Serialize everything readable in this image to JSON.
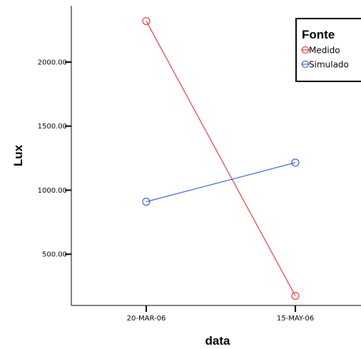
{
  "chart_data": {
    "type": "line",
    "xlabel": "data",
    "ylabel": "Lux",
    "categories": [
      "20-MAR-06",
      "15-MAY-06"
    ],
    "ylim": [
      100,
      2440
    ],
    "yticks": [
      {
        "value": 500,
        "label": "500.00"
      },
      {
        "value": 1000,
        "label": "1000.00"
      },
      {
        "value": 1500,
        "label": "1500.00"
      },
      {
        "value": 2000,
        "label": "2000.00"
      }
    ],
    "legend": {
      "title": "Fonte",
      "position": "top-right"
    },
    "series": [
      {
        "name": "Medido",
        "values": [
          2320,
          175
        ],
        "color": "#e8383d"
      },
      {
        "name": "Simulado",
        "values": [
          910,
          1215
        ],
        "color": "#3c66c8"
      }
    ],
    "marker": "open-circle",
    "grid": false
  }
}
